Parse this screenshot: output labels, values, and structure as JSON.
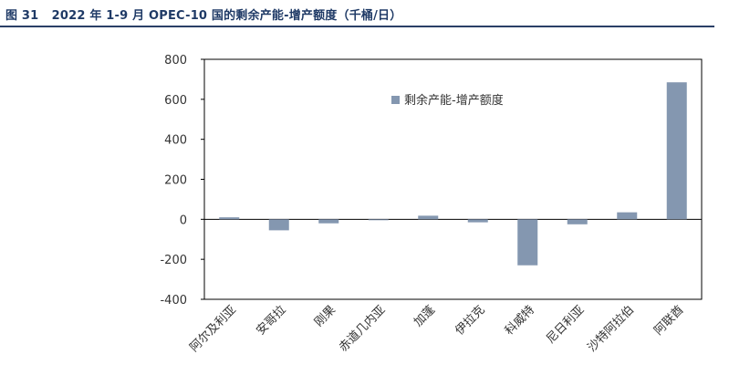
{
  "figure": {
    "label": "图 31",
    "title": "2022 年 1-9 月 OPEC-10 国的剩余产能-增产额度（千桶/日）"
  },
  "chart_data": {
    "type": "bar",
    "title": "2022 年 1-9 月 OPEC-10 国的剩余产能-增产额度（千桶/日）",
    "categories": [
      "阿尔及利亚",
      "安哥拉",
      "刚果",
      "赤道几内亚",
      "加蓬",
      "伊拉克",
      "科威特",
      "尼日利亚",
      "沙特阿拉伯",
      "阿联酋"
    ],
    "series": [
      {
        "name": "剩余产能-增产额度",
        "values": [
          10,
          -55,
          -20,
          -3,
          18,
          -15,
          -230,
          -25,
          35,
          685
        ],
        "color": "#8497b0"
      }
    ],
    "ylim": [
      -400,
      800
    ],
    "yticks": [
      -400,
      -200,
      0,
      200,
      400,
      600,
      800
    ],
    "xlabel": "",
    "ylabel": "",
    "grid": false,
    "legend_position": "inside-top"
  }
}
